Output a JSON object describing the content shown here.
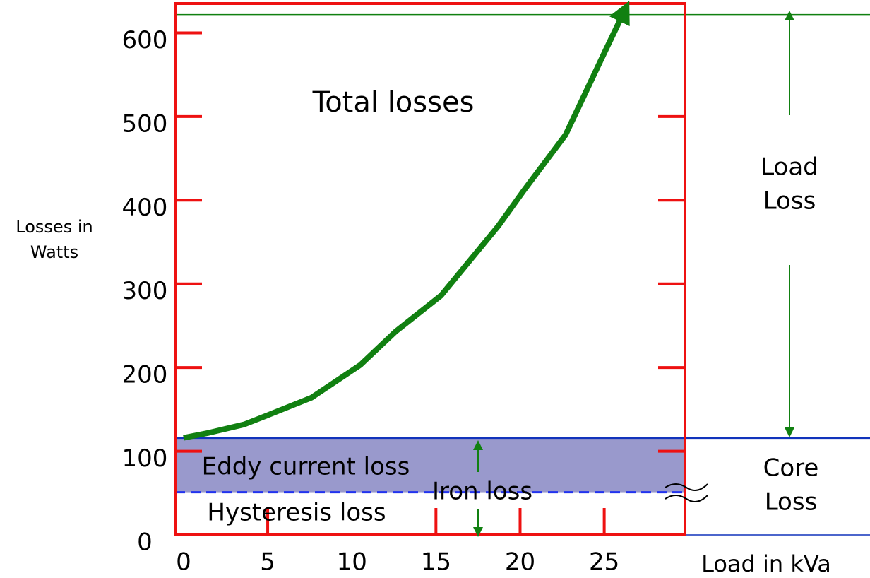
{
  "chart_data": {
    "type": "line",
    "x_label": "Load in kVa",
    "y_label": [
      "Losses in",
      "Watts"
    ],
    "xlim": [
      -0.5,
      29.8
    ],
    "ylim": [
      0,
      635
    ],
    "xticks": [
      0,
      5,
      10,
      15,
      20,
      25
    ],
    "yticks": [
      0,
      100,
      200,
      300,
      400,
      500,
      600
    ],
    "series": [
      {
        "name": "Total losses",
        "color": "#118011",
        "x": [
          0,
          1.5,
          3.6,
          5,
          7.6,
          10.5,
          12.6,
          15.3,
          18.7,
          20.2,
          22.7,
          25.1,
          26.2
        ],
        "values": [
          116,
          122,
          132,
          143,
          164,
          203,
          243,
          286,
          369,
          411,
          478,
          580,
          626
        ]
      }
    ],
    "core_loss": 116,
    "hysteresis_loss": 51,
    "labels": {
      "total": "Total losses",
      "load_loss": [
        "Load",
        "Loss"
      ],
      "core_loss": [
        "Core",
        "Loss"
      ],
      "eddy": "Eddy current loss",
      "hysteresis": "Hysteresis loss",
      "iron": "Iron loss"
    }
  }
}
